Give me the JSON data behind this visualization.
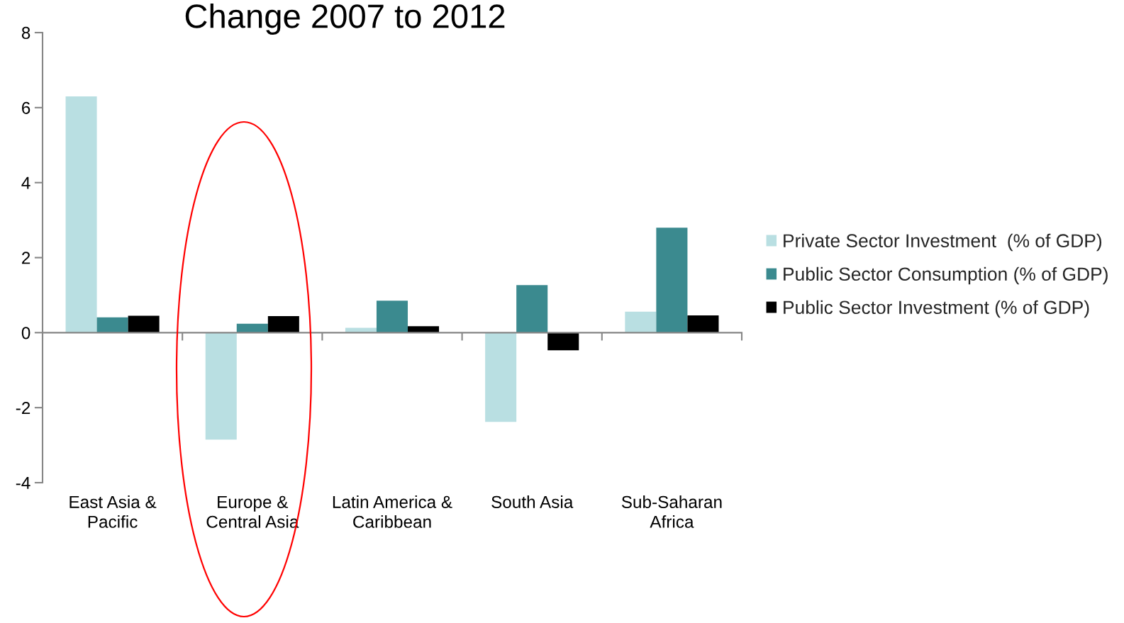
{
  "chart_data": {
    "type": "bar",
    "title": "Change 2007 to 2012",
    "categories": [
      "East Asia &\nPacific",
      "Europe &\nCentral Asia",
      "Latin America &\nCaribbean",
      "South Asia",
      "Sub-Saharan\nAfrica"
    ],
    "series": [
      {
        "name": "Private Sector Investment  (% of GDP)",
        "color": "#b9dfe2",
        "values": [
          6.3,
          -2.85,
          0.13,
          -2.38,
          0.56
        ]
      },
      {
        "name": "Public Sector Consumption (% of GDP)",
        "color": "#3b8a8f",
        "values": [
          0.41,
          0.24,
          0.85,
          1.27,
          2.8
        ]
      },
      {
        "name": "Public Sector Investment (% of GDP)",
        "color": "#000000",
        "values": [
          0.45,
          0.44,
          0.17,
          -0.47,
          0.46
        ]
      }
    ],
    "ylim": [
      -4,
      8
    ],
    "yticks": [
      -4,
      -2,
      0,
      2,
      4,
      6,
      8
    ],
    "legend": "right"
  }
}
